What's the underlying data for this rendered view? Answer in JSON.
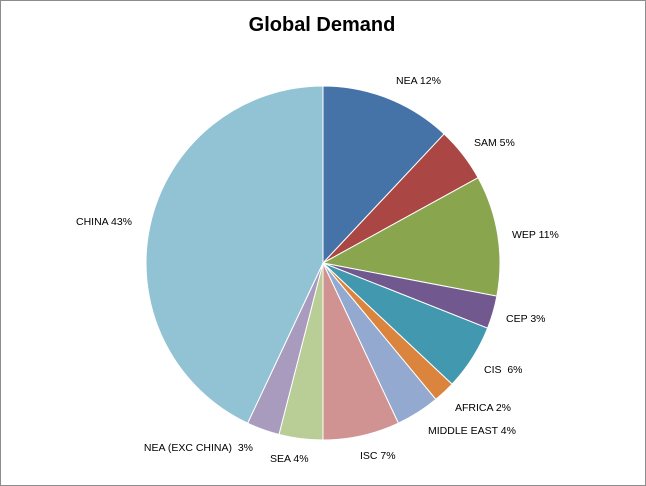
{
  "chart_data": {
    "type": "pie",
    "title": "Global Demand",
    "start_angle_deg": 0,
    "direction": "clockwise",
    "slices": [
      {
        "label": "NEA 12%",
        "value": 12,
        "color": "#4572A7"
      },
      {
        "label": "SAM 5%",
        "value": 5,
        "color": "#AA4643"
      },
      {
        "label": "WEP 11%",
        "value": 11,
        "color": "#89A54E"
      },
      {
        "label": "CEP 3%",
        "value": 3,
        "color": "#71588F"
      },
      {
        "label": "CIS  6%",
        "value": 6,
        "color": "#4198AF"
      },
      {
        "label": "AFRICA 2%",
        "value": 2,
        "color": "#DB843D"
      },
      {
        "label": "MIDDLE EAST 4%",
        "value": 4,
        "color": "#93A9CF"
      },
      {
        "label": "ISC 7%",
        "value": 7,
        "color": "#D19392"
      },
      {
        "label": "SEA 4%",
        "value": 4,
        "color": "#B9CD96"
      },
      {
        "label": "NEA (EXC CHINA)  3%",
        "value": 3,
        "color": "#A99BBD"
      },
      {
        "label": "CHINA 43%",
        "value": 43,
        "color": "#92C3D4"
      }
    ]
  }
}
